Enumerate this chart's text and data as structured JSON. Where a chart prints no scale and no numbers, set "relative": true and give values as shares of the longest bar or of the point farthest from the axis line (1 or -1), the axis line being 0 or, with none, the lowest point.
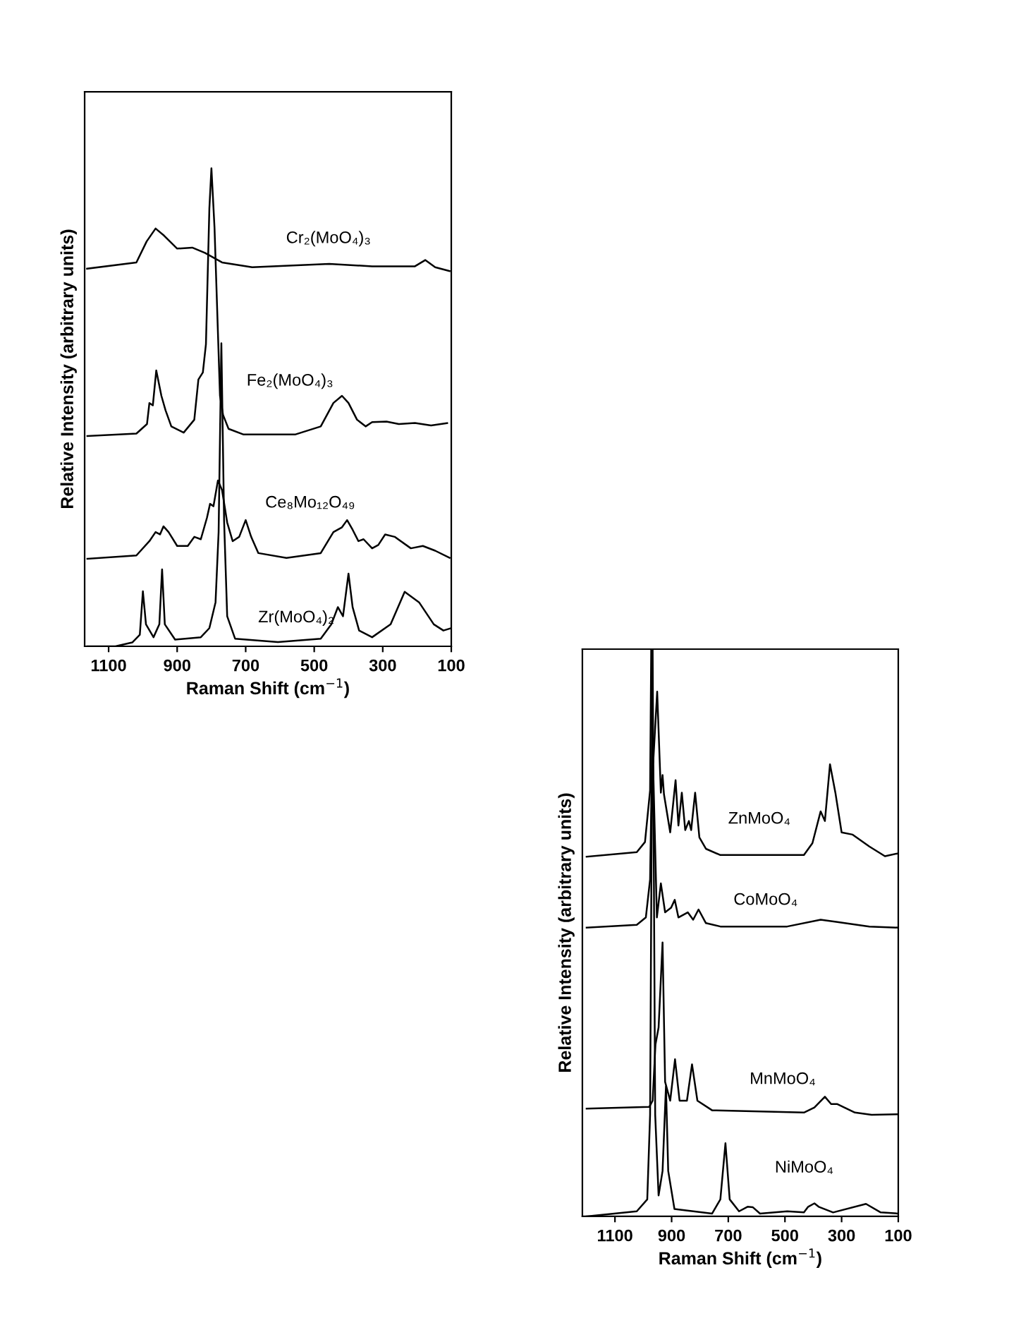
{
  "chart_data": [
    {
      "type": "line",
      "relative": true,
      "xlabel": "Raman Shift (cm$^{−1}$)",
      "ylabel": "Relative Intensity (arbitrary units)",
      "xlim": [
        1170,
        100
      ],
      "xticks": [
        1100,
        900,
        700,
        500,
        300,
        100
      ],
      "tick_labels": "x",
      "legend": false,
      "series": [
        {
          "name": "Cr₂(MoO₄)₃",
          "color": "#000000",
          "x": [
            1163,
            1019,
            989,
            963,
            938,
            900,
            856,
            819,
            769,
            681,
            456,
            331,
            206,
            176,
            147,
            105
          ],
          "values": [
            0.79,
            0.803,
            0.847,
            0.874,
            0.859,
            0.832,
            0.834,
            0.823,
            0.803,
            0.793,
            0.8,
            0.795,
            0.795,
            0.808,
            0.793,
            0.785
          ]
        },
        {
          "name": "Fe₂(MoO₄)₃",
          "color": "#000000",
          "x": [
            1162,
            1019,
            988,
            981,
            971,
            961,
            946,
            934,
            917,
            881,
            850,
            838,
            825,
            816,
            806,
            800,
            791,
            775,
            766,
            750,
            706,
            556,
            481,
            444,
            419,
            400,
            375,
            350,
            331,
            289,
            253,
            206,
            159,
            112
          ],
          "values": [
            0.44,
            0.445,
            0.465,
            0.509,
            0.504,
            0.577,
            0.524,
            0.494,
            0.46,
            0.447,
            0.474,
            0.558,
            0.573,
            0.632,
            0.916,
            1.0,
            0.876,
            0.524,
            0.484,
            0.455,
            0.443,
            0.443,
            0.46,
            0.509,
            0.524,
            0.509,
            0.474,
            0.46,
            0.469,
            0.47,
            0.465,
            0.467,
            0.462,
            0.467
          ]
        },
        {
          "name": "Ce₈Mo₁₂O₄₉",
          "color": "#000000",
          "x": [
            1162,
            1019,
            981,
            963,
            950,
            940,
            925,
            900,
            869,
            850,
            831,
            813,
            804,
            794,
            781,
            769,
            754,
            738,
            719,
            700,
            684,
            663,
            581,
            481,
            444,
            419,
            404,
            388,
            371,
            356,
            331,
            313,
            293,
            265,
            218,
            183,
            147,
            105
          ],
          "values": [
            0.183,
            0.19,
            0.22,
            0.239,
            0.234,
            0.251,
            0.239,
            0.21,
            0.21,
            0.229,
            0.224,
            0.269,
            0.298,
            0.293,
            0.347,
            0.327,
            0.259,
            0.22,
            0.229,
            0.264,
            0.229,
            0.195,
            0.185,
            0.195,
            0.239,
            0.249,
            0.264,
            0.244,
            0.22,
            0.224,
            0.205,
            0.212,
            0.234,
            0.229,
            0.205,
            0.21,
            0.2,
            0.185
          ]
        },
        {
          "name": "Zr(MoO₄)₂",
          "color": "#000000",
          "x": [
            1162,
            1080,
            1031,
            1009,
            1000,
            991,
            969,
            952,
            944,
            936,
            906,
            831,
            806,
            788,
            779,
            771,
            763,
            754,
            731,
            606,
            481,
            450,
            431,
            416,
            400,
            388,
            369,
            331,
            277,
            236,
            194,
            151,
            123,
            100
          ],
          "values": [
            0.0,
            0.0,
            0.008,
            0.024,
            0.115,
            0.046,
            0.019,
            0.046,
            0.161,
            0.046,
            0.014,
            0.019,
            0.038,
            0.092,
            0.239,
            0.634,
            0.262,
            0.063,
            0.016,
            0.009,
            0.016,
            0.046,
            0.082,
            0.063,
            0.152,
            0.082,
            0.033,
            0.019,
            0.046,
            0.114,
            0.092,
            0.046,
            0.033,
            0.038
          ]
        }
      ]
    },
    {
      "type": "line",
      "relative": true,
      "xlabel": "Raman Shift (cm$^{−1}$)",
      "ylabel": "Relative Intensity (arbitrary units)",
      "xlim": [
        1215,
        100
      ],
      "xticks": [
        1100,
        900,
        700,
        500,
        300,
        100
      ],
      "tick_labels": "x",
      "legend": false,
      "series": [
        {
          "name": "ZnMoO₄",
          "color": "#000000",
          "x": [
            1200,
            1023,
            994,
            976,
            972,
            965,
            951,
            938,
            932,
            927,
            905,
            886,
            876,
            864,
            852,
            839,
            831,
            817,
            802,
            779,
            728,
            433,
            403,
            374,
            359,
            341,
            322,
            300,
            261,
            202,
            147,
            100
          ],
          "values": [
            0.634,
            0.642,
            0.66,
            0.751,
            1.0,
            0.8,
            0.925,
            0.747,
            0.778,
            0.744,
            0.677,
            0.769,
            0.689,
            0.747,
            0.681,
            0.697,
            0.681,
            0.747,
            0.668,
            0.648,
            0.637,
            0.637,
            0.658,
            0.714,
            0.697,
            0.797,
            0.747,
            0.677,
            0.673,
            0.652,
            0.635,
            0.64
          ]
        },
        {
          "name": "CoMoO₄",
          "color": "#000000",
          "x": [
            1200,
            1023,
            991,
            976,
            968,
            952,
            938,
            923,
            902,
            889,
            876,
            843,
            824,
            805,
            779,
            728,
            492,
            374,
            315,
            202,
            100
          ],
          "values": [
            0.509,
            0.514,
            0.527,
            0.594,
            0.85,
            0.527,
            0.587,
            0.536,
            0.544,
            0.558,
            0.527,
            0.536,
            0.523,
            0.541,
            0.517,
            0.511,
            0.511,
            0.523,
            0.519,
            0.511,
            0.509
          ]
        },
        {
          "name": "MnMoO₄",
          "color": "#000000",
          "x": [
            1200,
            979,
            967,
            957,
            946,
            932,
            923,
            905,
            888,
            872,
            846,
            828,
            809,
            757,
            433,
            396,
            359,
            337,
            315,
            253,
            194,
            100
          ],
          "values": [
            0.19,
            0.193,
            0.204,
            0.303,
            0.333,
            0.483,
            0.237,
            0.204,
            0.277,
            0.204,
            0.204,
            0.268,
            0.204,
            0.187,
            0.183,
            0.192,
            0.211,
            0.198,
            0.198,
            0.183,
            0.179,
            0.18
          ]
        },
        {
          "name": "NiMoO₄",
          "color": "#000000",
          "x": [
            1200,
            1023,
            986,
            976,
            967,
            958,
            946,
            932,
            920,
            912,
            890,
            757,
            728,
            710,
            695,
            662,
            632,
            613,
            588,
            492,
            433,
            418,
            396,
            381,
            330,
            214,
            162,
            100
          ],
          "values": [
            0.0,
            0.009,
            0.03,
            0.179,
            1.0,
            0.179,
            0.037,
            0.08,
            0.229,
            0.08,
            0.013,
            0.005,
            0.03,
            0.129,
            0.03,
            0.009,
            0.017,
            0.016,
            0.005,
            0.009,
            0.007,
            0.017,
            0.023,
            0.017,
            0.007,
            0.022,
            0.007,
            0.005
          ]
        }
      ]
    }
  ]
}
